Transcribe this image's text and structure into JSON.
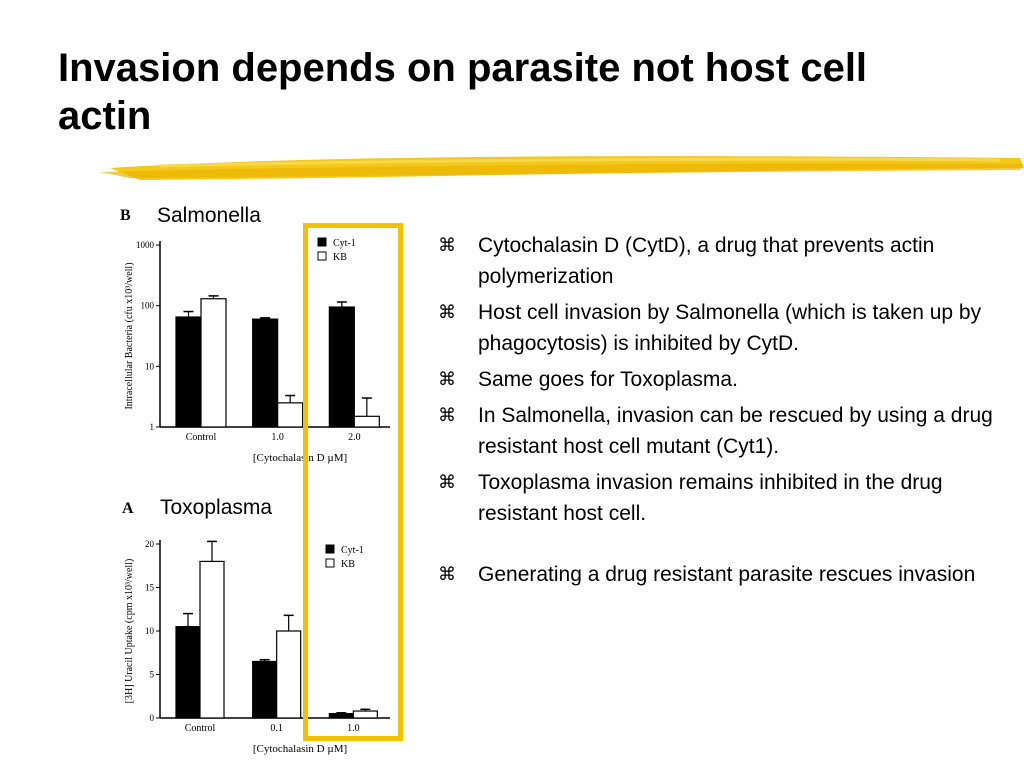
{
  "slide": {
    "title": "Invasion depends on parasite not host cell actin",
    "accent_color": "#f2c200"
  },
  "figures": {
    "salmonella": {
      "panel_letter": "B",
      "name": "Salmonella",
      "chart_data": {
        "type": "bar",
        "ylabel": "Intracellular Bacteria (cfu x10³/well)",
        "xlabel": "[Cytochalasin D µM]",
        "yscale": "log",
        "ylim": [
          1,
          1000
        ],
        "yticks": [
          "1000",
          "100",
          "10",
          "1"
        ],
        "categories": [
          "Control",
          "1.0",
          "2.0"
        ],
        "series": [
          {
            "name": "Cyt-1",
            "color": "#000000",
            "values": [
              65,
              60,
              95
            ],
            "errors": [
              15,
              3,
              20
            ]
          },
          {
            "name": "KB",
            "color": "#ffffff",
            "values": [
              130,
              2.5,
              1.5
            ],
            "errors": [
              15,
              0.8,
              1.5
            ]
          }
        ],
        "legend": "top-right"
      }
    },
    "toxoplasma": {
      "panel_letter": "A",
      "name": "Toxoplasma",
      "chart_data": {
        "type": "bar",
        "ylabel": "[3H] Uracil Uptake (cpm x10³/well)",
        "xlabel": "[Cytochalasin D µM]",
        "ylim": [
          0,
          20
        ],
        "yticks": [
          "0",
          "5",
          "10",
          "15",
          "20"
        ],
        "categories": [
          "Control",
          "0.1",
          "1.0"
        ],
        "series": [
          {
            "name": "Cyt-1",
            "color": "#000000",
            "values": [
              10.5,
              6.5,
              0.5
            ],
            "errors": [
              1.5,
              0.2,
              0.1
            ]
          },
          {
            "name": "KB",
            "color": "#ffffff",
            "values": [
              18,
              10,
              0.8
            ],
            "errors": [
              2.3,
              1.8,
              0.2
            ]
          }
        ],
        "legend": "top-right"
      }
    }
  },
  "bullets": [
    {
      "mark": "⌘",
      "text": "Cytochalasin D (CytD), a drug that prevents actin polymerization"
    },
    {
      "mark": "⌘",
      "text": "Host cell invasion by Salmonella (which is taken up by phagocytosis) is inhibited by CytD."
    },
    {
      "mark": "⌘",
      "text": "Same goes for Toxoplasma."
    },
    {
      "mark": "⌘",
      "text": "In Salmonella, invasion can be rescued by using a drug resistant host cell mutant (Cyt1)."
    },
    {
      "mark": "⌘",
      "text": "Toxoplasma invasion remains inhibited in the drug resistant host cell."
    },
    {
      "mark": "⌘",
      "text": "Generating a drug resistant parasite rescues invasion"
    }
  ]
}
